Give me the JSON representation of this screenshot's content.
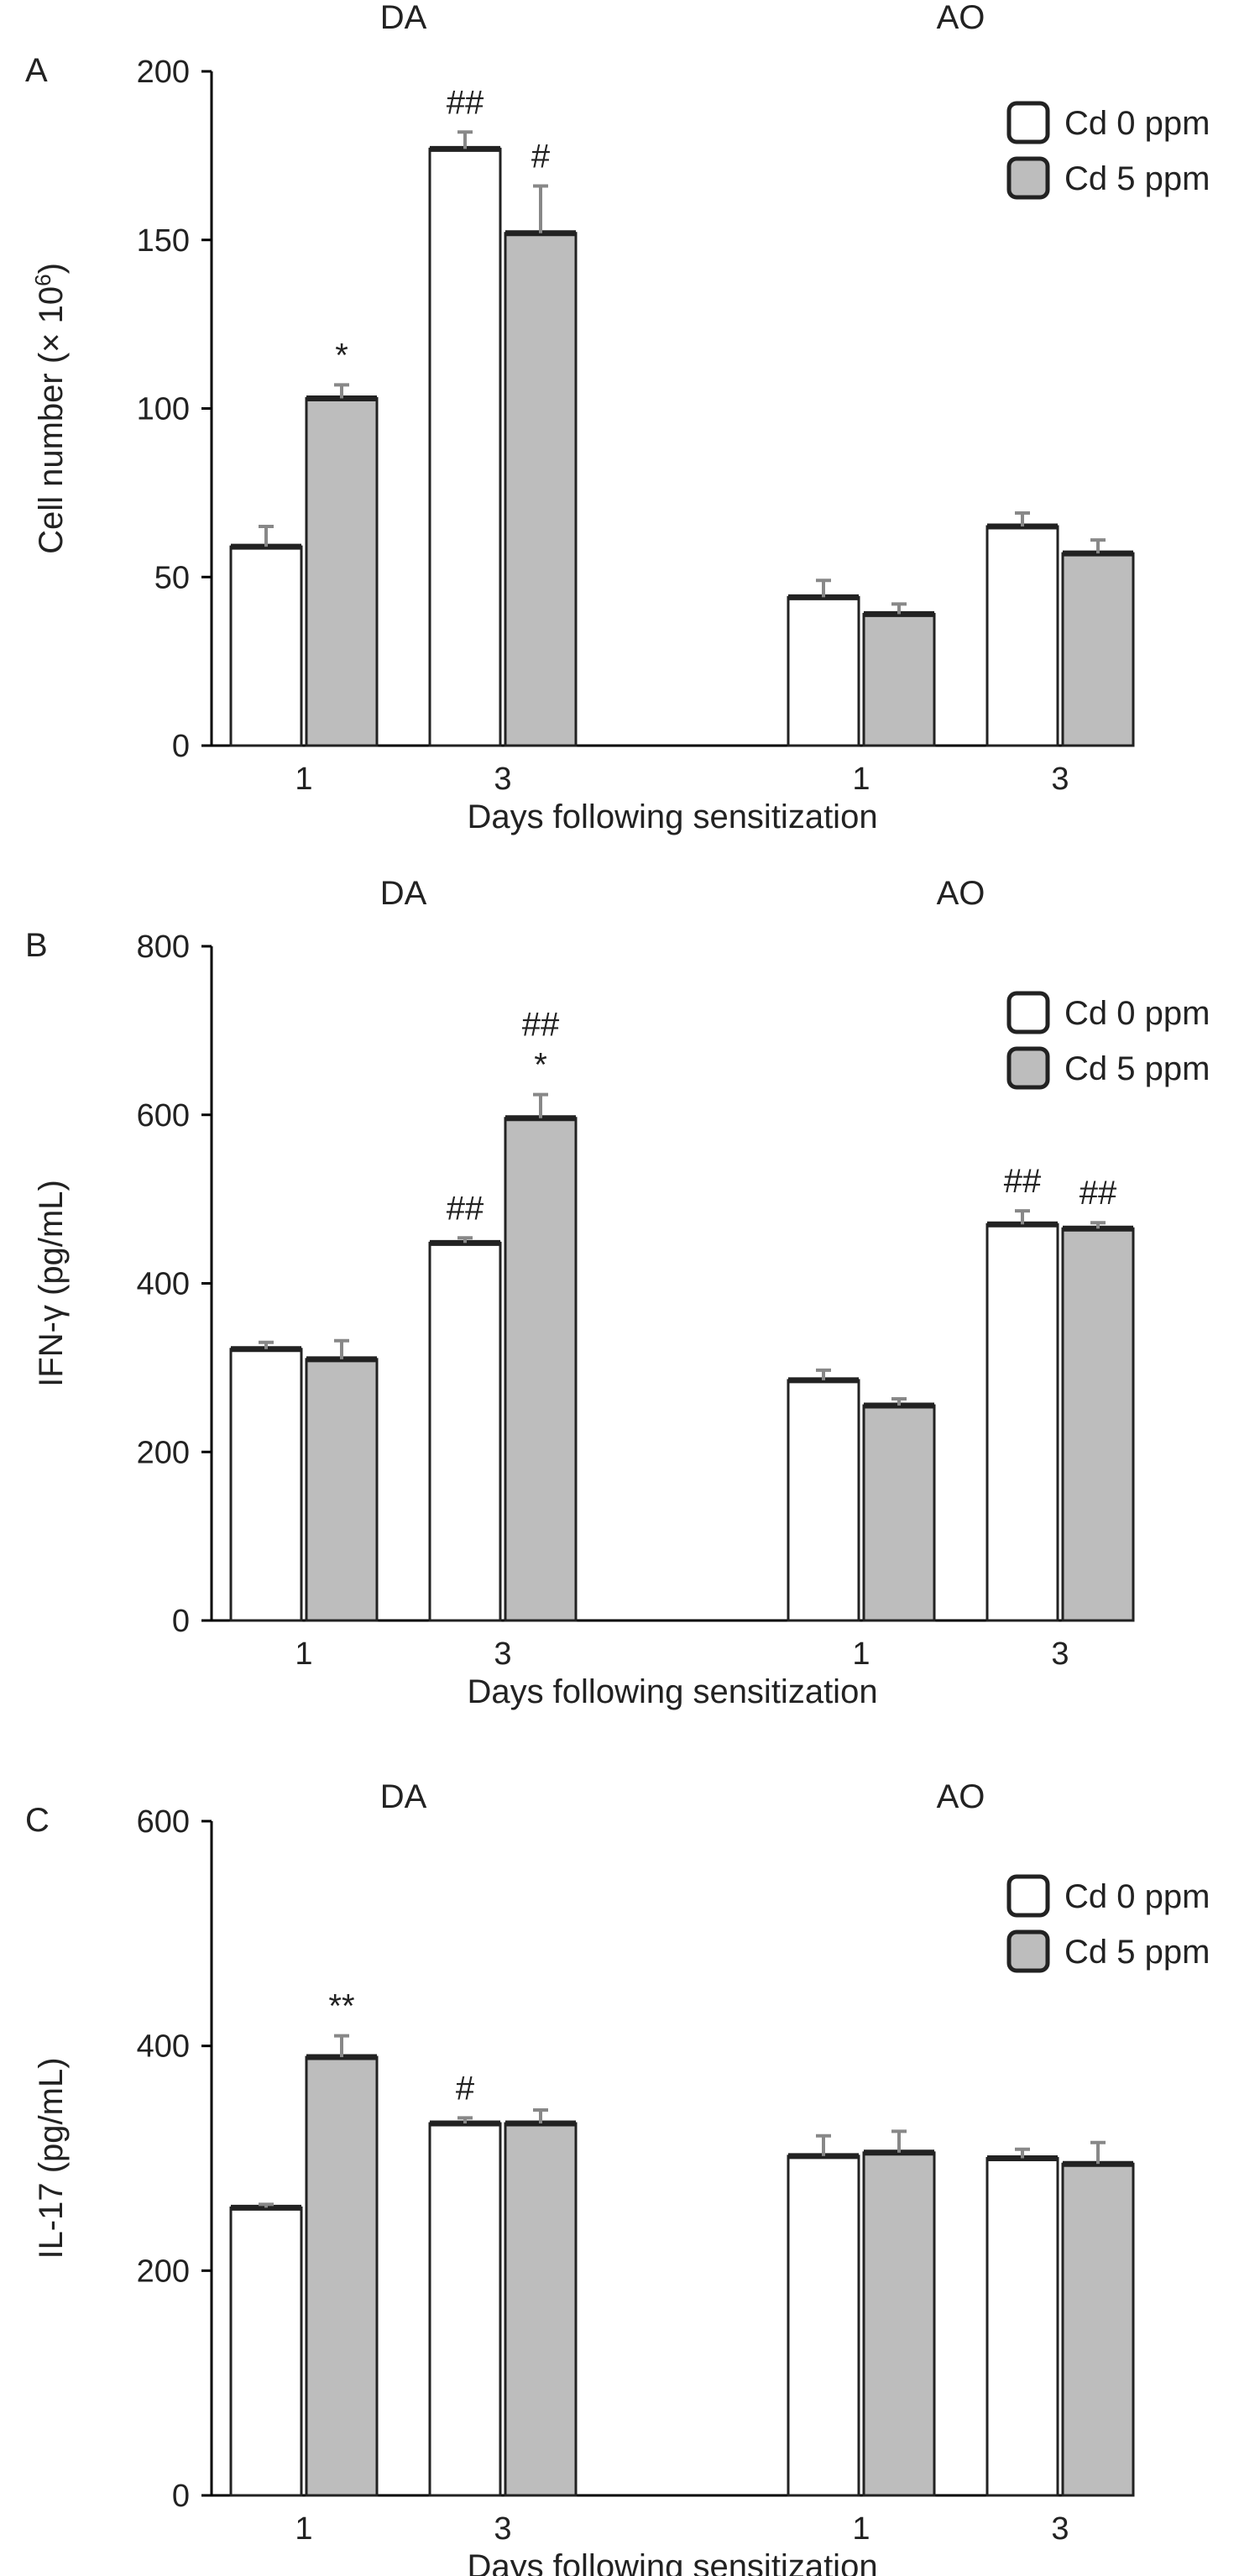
{
  "colors": {
    "cd0_fill": "#ffffff",
    "cd5_fill": "#bdbdbd",
    "bar_edge": "#222222",
    "error_bar": "#888888"
  },
  "chart_data": [
    {
      "type": "bar",
      "panel_label": "A",
      "ylabel": "Cell number (× 10⁶)",
      "ylabel_main": "Cell number (× 10",
      "ylabel_sup": "6",
      "ylabel_tail": ")",
      "xlabel": "Days following sensitization",
      "ylim": [
        0,
        200
      ],
      "yticks": [
        0,
        50,
        100,
        150,
        200
      ],
      "groups": [
        "DA",
        "AO"
      ],
      "categories": [
        "1",
        "3",
        "1",
        "3"
      ],
      "category_group": [
        "DA",
        "DA",
        "AO",
        "AO"
      ],
      "series": [
        {
          "name": "Cd 0 ppm",
          "values": [
            59,
            177,
            44,
            65
          ],
          "errors": [
            6,
            5,
            5,
            4
          ],
          "annotations": [
            "",
            "##",
            "",
            ""
          ]
        },
        {
          "name": "Cd 5 ppm",
          "values": [
            103,
            152,
            39,
            57
          ],
          "errors": [
            4,
            14,
            3,
            4
          ],
          "annotations": [
            "*",
            "#",
            "",
            ""
          ]
        }
      ],
      "legend": {
        "position": "top-right",
        "entries": [
          "Cd 0 ppm",
          "Cd 5 ppm"
        ]
      }
    },
    {
      "type": "bar",
      "panel_label": "B",
      "ylabel": "IFN-γ (pg/mL)",
      "ylabel_main": "IFN-γ (pg/mL)",
      "ylabel_sup": "",
      "ylabel_tail": "",
      "xlabel": "Days following sensitization",
      "ylim": [
        0,
        800
      ],
      "yticks": [
        0,
        200,
        400,
        600,
        800
      ],
      "groups": [
        "DA",
        "AO"
      ],
      "categories": [
        "1",
        "3",
        "1",
        "3"
      ],
      "category_group": [
        "DA",
        "DA",
        "AO",
        "AO"
      ],
      "series": [
        {
          "name": "Cd 0 ppm",
          "values": [
            322,
            448,
            285,
            470
          ],
          "errors": [
            8,
            6,
            12,
            16
          ],
          "annotations": [
            "",
            "##",
            "",
            "##"
          ]
        },
        {
          "name": "Cd 5 ppm",
          "values": [
            310,
            596,
            255,
            465
          ],
          "errors": [
            22,
            28,
            8,
            7
          ],
          "annotations": [
            "",
            "##\n*",
            "",
            "##"
          ]
        }
      ],
      "legend": {
        "position": "top-right",
        "entries": [
          "Cd 0 ppm",
          "Cd 5 ppm"
        ]
      }
    },
    {
      "type": "bar",
      "panel_label": "C",
      "ylabel": "IL-17 (pg/mL)",
      "ylabel_main": "IL-17 (pg/mL)",
      "ylabel_sup": "",
      "ylabel_tail": "",
      "xlabel": "Days following sensitization",
      "ylim": [
        0,
        600
      ],
      "yticks": [
        0,
        200,
        400,
        600
      ],
      "groups": [
        "DA",
        "AO"
      ],
      "categories": [
        "1",
        "3",
        "1",
        "3"
      ],
      "category_group": [
        "DA",
        "DA",
        "AO",
        "AO"
      ],
      "series": [
        {
          "name": "Cd 0 ppm",
          "values": [
            256,
            331,
            302,
            300
          ],
          "errors": [
            3,
            5,
            18,
            8
          ],
          "annotations": [
            "",
            "#",
            "",
            ""
          ]
        },
        {
          "name": "Cd 5 ppm",
          "values": [
            390,
            331,
            305,
            295
          ],
          "errors": [
            19,
            12,
            19,
            19
          ],
          "annotations": [
            "**",
            "",
            "",
            ""
          ]
        }
      ],
      "legend": {
        "position": "top-right",
        "entries": [
          "Cd 0 ppm",
          "Cd 5 ppm"
        ]
      }
    }
  ]
}
